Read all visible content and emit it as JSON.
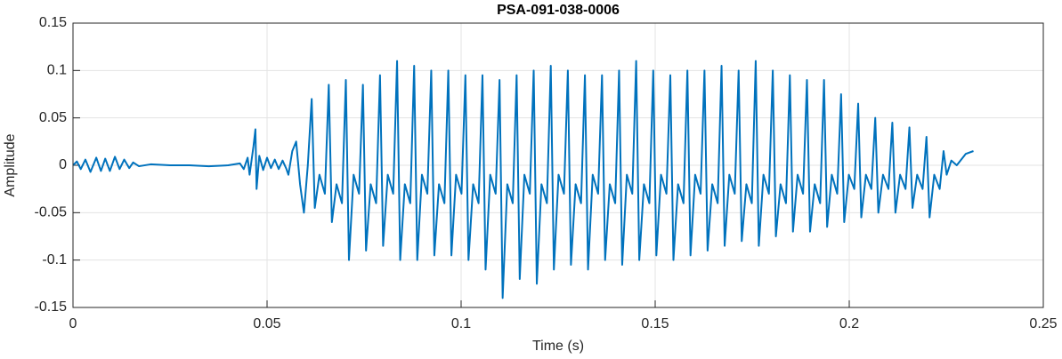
{
  "chart_data": {
    "type": "line",
    "title": "PSA-091-038-0006",
    "xlabel": "Time (s)",
    "ylabel": "Amplitude",
    "color": "#0072bd",
    "grid": true,
    "xlim": [
      0,
      0.25
    ],
    "xticks": [
      0,
      0.05,
      0.1,
      0.15,
      0.2,
      0.25
    ],
    "ylim": [
      -0.15,
      0.15
    ],
    "yticks": [
      -0.15,
      -0.1,
      -0.05,
      0,
      0.05,
      0.1,
      0.15
    ],
    "x": [
      0,
      0.001,
      0.002,
      0.0032,
      0.0045,
      0.006,
      0.0072,
      0.0083,
      0.0095,
      0.0108,
      0.012,
      0.0132,
      0.0145,
      0.0155,
      0.017,
      0.02,
      0.025,
      0.03,
      0.035,
      0.04,
      0.043,
      0.044,
      0.045,
      0.0455,
      0.0465,
      0.047,
      0.0473,
      0.048,
      0.049,
      0.05,
      0.051,
      0.052,
      0.053,
      0.054,
      0.055,
      0.0555,
      0.0565,
      0.0575,
      0.0585,
      0.0595,
      0.0605,
      0.0615,
      0.0623,
      0.0635,
      0.0649,
      0.0659,
      0.0667,
      0.0679,
      0.0693,
      0.0703,
      0.0711,
      0.0723,
      0.0737,
      0.0747,
      0.0755,
      0.0767,
      0.0781,
      0.0791,
      0.0799,
      0.0811,
      0.0825,
      0.0835,
      0.0843,
      0.0855,
      0.0869,
      0.0879,
      0.0887,
      0.0899,
      0.0913,
      0.0923,
      0.0931,
      0.0943,
      0.0957,
      0.0967,
      0.0975,
      0.0987,
      0.1001,
      0.1011,
      0.1019,
      0.1031,
      0.1045,
      0.1055,
      0.1063,
      0.1075,
      0.1089,
      0.1099,
      0.1107,
      0.1119,
      0.1133,
      0.1143,
      0.1151,
      0.1163,
      0.1177,
      0.1187,
      0.1195,
      0.1207,
      0.1221,
      0.1231,
      0.1239,
      0.1251,
      0.1265,
      0.1275,
      0.1283,
      0.1295,
      0.1309,
      0.1319,
      0.1327,
      0.1339,
      0.1353,
      0.1363,
      0.1371,
      0.1383,
      0.1397,
      0.1407,
      0.1415,
      0.1427,
      0.1441,
      0.1451,
      0.1459,
      0.1471,
      0.1485,
      0.1495,
      0.1503,
      0.1515,
      0.1529,
      0.1539,
      0.1547,
      0.1559,
      0.1573,
      0.1583,
      0.1591,
      0.1603,
      0.1617,
      0.1627,
      0.1635,
      0.1647,
      0.1661,
      0.1671,
      0.1679,
      0.1691,
      0.1705,
      0.1715,
      0.1723,
      0.1735,
      0.1749,
      0.1759,
      0.1767,
      0.1779,
      0.1793,
      0.1803,
      0.1811,
      0.1823,
      0.1837,
      0.1847,
      0.1855,
      0.1867,
      0.1881,
      0.1891,
      0.1899,
      0.1911,
      0.1925,
      0.1935,
      0.1943,
      0.1955,
      0.1969,
      0.1979,
      0.1987,
      0.1999,
      0.2013,
      0.2023,
      0.2031,
      0.2043,
      0.2057,
      0.2067,
      0.2075,
      0.2087,
      0.2101,
      0.2111,
      0.2119,
      0.2131,
      0.2145,
      0.2155,
      0.2163,
      0.2175,
      0.2189,
      0.2199,
      0.2207,
      0.2219,
      0.2233,
      0.2243,
      0.2251,
      0.2263,
      0.2277,
      0.23,
      0.232
    ],
    "values": [
      0,
      0.004,
      -0.004,
      0.006,
      -0.007,
      0.008,
      -0.006,
      0.007,
      -0.006,
      0.009,
      -0.004,
      0.006,
      -0.003,
      0.003,
      -0.001,
      0.001,
      0,
      0,
      -0.001,
      0,
      0.002,
      -0.004,
      0.008,
      -0.01,
      0.02,
      0.038,
      -0.025,
      0.01,
      -0.005,
      0.008,
      -0.003,
      0.006,
      -0.004,
      0.005,
      -0.004,
      -0.01,
      0.015,
      0.025,
      -0.02,
      -0.05,
      0,
      0.07,
      -0.045,
      -0.01,
      -0.03,
      0.085,
      -0.06,
      -0.02,
      -0.04,
      0.09,
      -0.1,
      -0.01,
      -0.03,
      0.085,
      -0.09,
      -0.02,
      -0.04,
      0.095,
      -0.085,
      -0.01,
      -0.03,
      0.11,
      -0.1,
      -0.02,
      -0.04,
      0.105,
      -0.1,
      -0.01,
      -0.03,
      0.1,
      -0.095,
      -0.02,
      -0.04,
      0.1,
      -0.095,
      -0.01,
      -0.03,
      0.095,
      -0.1,
      -0.02,
      -0.04,
      0.095,
      -0.11,
      -0.01,
      -0.03,
      0.09,
      -0.14,
      -0.02,
      -0.04,
      0.095,
      -0.12,
      -0.01,
      -0.03,
      0.1,
      -0.125,
      -0.02,
      -0.04,
      0.105,
      -0.11,
      -0.01,
      -0.03,
      0.1,
      -0.105,
      -0.02,
      -0.04,
      0.095,
      -0.11,
      -0.01,
      -0.03,
      0.095,
      -0.1,
      -0.02,
      -0.04,
      0.1,
      -0.105,
      -0.01,
      -0.03,
      0.11,
      -0.1,
      -0.02,
      -0.04,
      0.1,
      -0.095,
      -0.01,
      -0.03,
      0.095,
      -0.1,
      -0.02,
      -0.04,
      0.1,
      -0.095,
      -0.01,
      -0.03,
      0.1,
      -0.09,
      -0.02,
      -0.04,
      0.105,
      -0.085,
      -0.01,
      -0.03,
      0.1,
      -0.08,
      -0.02,
      -0.04,
      0.11,
      -0.085,
      -0.01,
      -0.03,
      0.1,
      -0.075,
      -0.02,
      -0.04,
      0.095,
      -0.07,
      -0.01,
      -0.03,
      0.09,
      -0.07,
      -0.02,
      -0.04,
      0.09,
      -0.065,
      -0.01,
      -0.03,
      0.075,
      -0.06,
      -0.01,
      -0.025,
      0.065,
      -0.055,
      -0.01,
      -0.025,
      0.05,
      -0.05,
      -0.01,
      -0.025,
      0.045,
      -0.05,
      -0.01,
      -0.025,
      0.04,
      -0.045,
      -0.01,
      -0.025,
      0.03,
      -0.055,
      -0.01,
      -0.025,
      0.015,
      -0.01,
      0.005,
      0,
      0.012,
      0.015
    ]
  }
}
